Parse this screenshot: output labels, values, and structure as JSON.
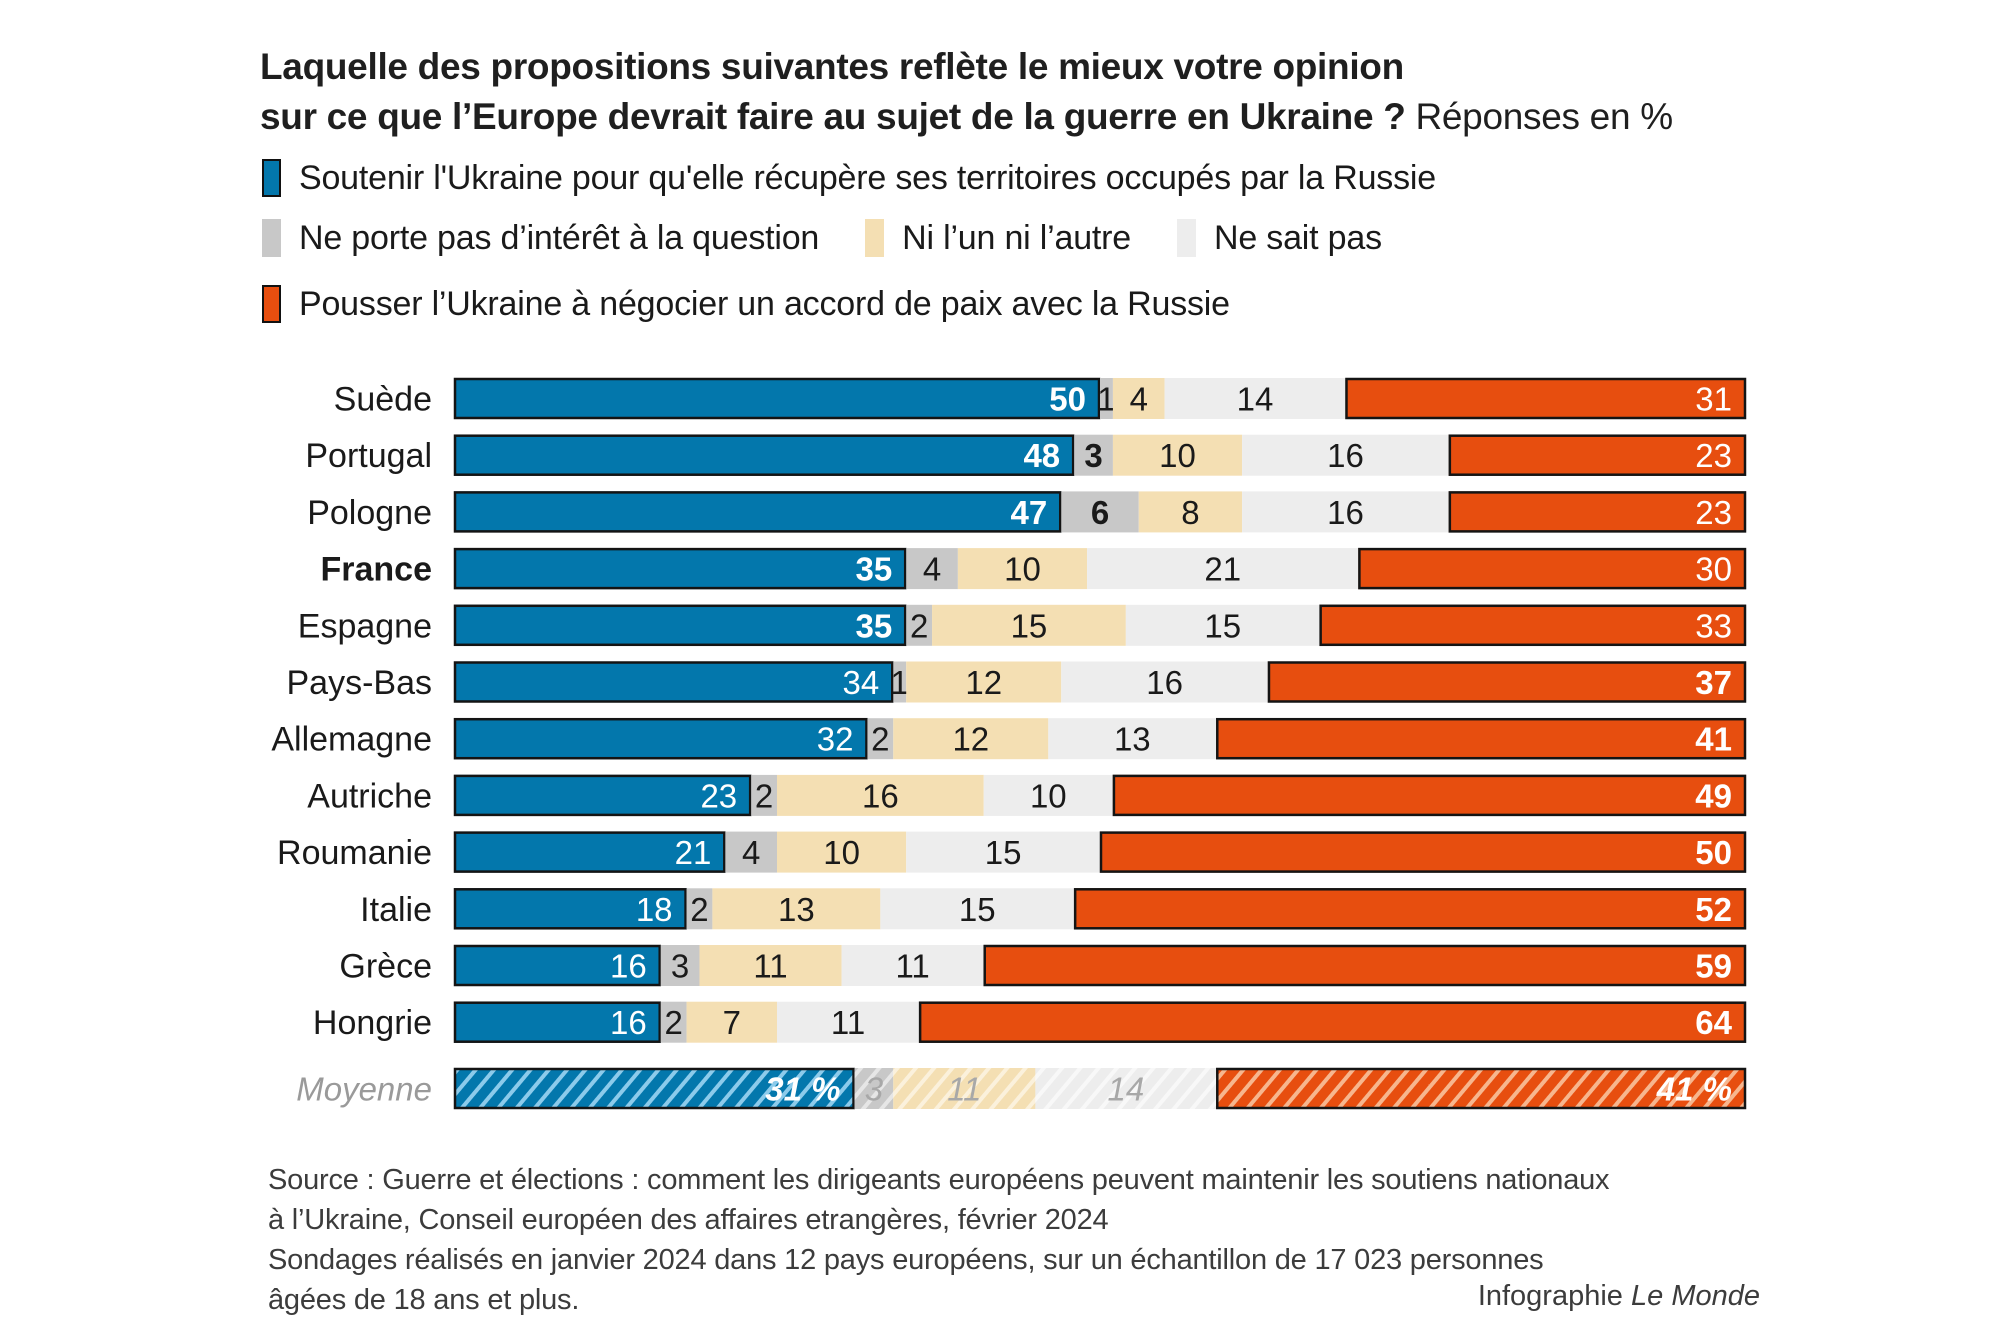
{
  "title": {
    "line1": "Laquelle des propositions suivantes reflète le mieux votre opinion",
    "line2": "sur ce que l’Europe devrait faire au sujet de la guerre en Ukraine ?",
    "unit": "Réponses en %"
  },
  "legend": [
    {
      "key": "soutenir",
      "label": "Soutenir l'Ukraine pour qu'elle récupère ses territoires occupés par la Russie",
      "color": "#0377AC"
    },
    {
      "key": "interet",
      "label": "Ne porte pas d’intérêt à la question",
      "color": "#C8C8C8"
    },
    {
      "key": "ni",
      "label": "Ni l’un ni l’autre",
      "color": "#F4DFB3"
    },
    {
      "key": "nsp",
      "label": "Ne sait pas",
      "color": "#EDEDED"
    },
    {
      "key": "pousser",
      "label": "Pousser l’Ukraine à négocier un accord de paix avec la Russie",
      "color": "#E74E0F"
    }
  ],
  "chart_data": {
    "type": "bar",
    "orientation": "horizontal",
    "stacked": true,
    "title": "Laquelle des propositions suivantes reflète le mieux votre opinion sur ce que l’Europe devrait faire au sujet de la guerre en Ukraine ? Réponses en %",
    "xlabel": "",
    "ylabel": "",
    "xlim": [
      0,
      100
    ],
    "grid": false,
    "legend_position": "top",
    "categories": [
      "Suède",
      "Portugal",
      "Pologne",
      "France",
      "Espagne",
      "Pays-Bas",
      "Allemagne",
      "Autriche",
      "Roumanie",
      "Italie",
      "Grèce",
      "Hongrie"
    ],
    "highlight_category": "France",
    "series": [
      {
        "name": "Soutenir l'Ukraine pour qu'elle récupère ses territoires occupés par la Russie",
        "values": [
          50,
          48,
          47,
          35,
          35,
          34,
          32,
          23,
          21,
          18,
          16,
          16
        ]
      },
      {
        "name": "Ne porte pas d’intérêt à la question",
        "values": [
          1,
          3,
          6,
          4,
          2,
          1,
          2,
          2,
          4,
          2,
          3,
          2
        ]
      },
      {
        "name": "Ni l’un ni l’autre",
        "values": [
          4,
          10,
          8,
          10,
          15,
          12,
          12,
          16,
          10,
          13,
          11,
          7
        ]
      },
      {
        "name": "Ne sait pas",
        "values": [
          14,
          16,
          16,
          21,
          15,
          16,
          13,
          10,
          15,
          15,
          11,
          11
        ]
      },
      {
        "name": "Pousser l’Ukraine à négocier un accord de paix avec la Russie",
        "values": [
          31,
          23,
          23,
          30,
          33,
          37,
          41,
          49,
          50,
          52,
          59,
          64
        ]
      }
    ],
    "bold_labels": {
      "soutenir": [
        true,
        true,
        true,
        true,
        true,
        false,
        false,
        false,
        false,
        false,
        false,
        false
      ],
      "interet": [
        false,
        true,
        true,
        false,
        false,
        false,
        false,
        false,
        false,
        false,
        false,
        false
      ],
      "pousser": [
        false,
        false,
        false,
        false,
        false,
        true,
        true,
        true,
        true,
        true,
        true,
        true
      ]
    },
    "average": {
      "label": "Moyenne",
      "values": [
        31,
        3,
        11,
        14,
        41
      ],
      "value_labels": [
        "31 %",
        "3",
        "11",
        "14",
        "41 %"
      ]
    }
  },
  "source": {
    "line1": "Source : Guerre et élections : comment les dirigeants européens peuvent maintenir les soutiens nationaux",
    "line2": "à l’Ukraine, Conseil européen des affaires etrangères, février 2024",
    "line3": "Sondages réalisés en janvier 2024 dans 12 pays européens, sur un échantillon de 17 023 personnes",
    "line4": "âgées de 18 ans et plus."
  },
  "credit": {
    "prefix": "Infographie",
    "brand": "Le Monde"
  }
}
